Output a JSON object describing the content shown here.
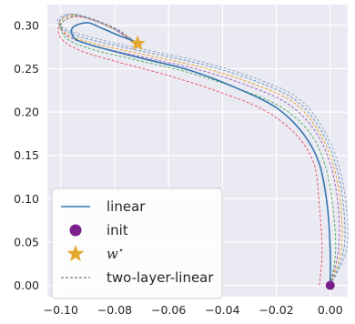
{
  "chart_data": {
    "type": "line",
    "title": "",
    "xlabel": "",
    "ylabel": "",
    "xlim": [
      -0.105,
      0.0065
    ],
    "ylim": [
      -0.013,
      0.324
    ],
    "x_ticks": [
      -0.1,
      -0.08,
      -0.06,
      -0.04,
      -0.02,
      0.0
    ],
    "x_tick_labels": [
      "−0.10",
      "−0.08",
      "−0.06",
      "−0.04",
      "−0.02",
      "0.00"
    ],
    "y_ticks": [
      0.0,
      0.05,
      0.1,
      0.15,
      0.2,
      0.25,
      0.3
    ],
    "y_tick_labels": [
      "0.00",
      "0.05",
      "0.10",
      "0.15",
      "0.20",
      "0.25",
      "0.30"
    ],
    "grid": true,
    "background_color": "#eaeaf2",
    "legend_position": "lower-left",
    "legend": [
      {
        "label": "linear",
        "marker": "line",
        "color": "#3474ae"
      },
      {
        "label": "init",
        "marker": "circle",
        "color": "#7b1f8d"
      },
      {
        "label": "w",
        "superscript": "⋆",
        "marker": "star",
        "color": "#e4a930"
      },
      {
        "label": "two-layer-linear",
        "marker": "dashed-line",
        "color": "#555555"
      }
    ],
    "series": [
      {
        "name": "linear",
        "style": "solid",
        "color": "#3474ae",
        "x": [
          0.0,
          0.0,
          -0.001,
          -0.004,
          -0.01,
          -0.02,
          -0.035,
          -0.052,
          -0.07,
          -0.085,
          -0.094,
          -0.096,
          -0.095,
          -0.09,
          -0.085,
          -0.079,
          -0.074,
          -0.0715
        ],
        "y": [
          0.0,
          0.04,
          0.09,
          0.14,
          0.175,
          0.205,
          0.228,
          0.248,
          0.262,
          0.274,
          0.283,
          0.292,
          0.299,
          0.303,
          0.297,
          0.289,
          0.283,
          0.279
        ]
      },
      {
        "name": "two-layer-linear",
        "style": "dashed",
        "color": "#e84a5f",
        "x": [
          -0.004,
          -0.003,
          -0.004,
          -0.006,
          -0.013,
          -0.025,
          -0.042,
          -0.06,
          -0.078,
          -0.092,
          -0.099,
          -0.101,
          -0.099,
          -0.094,
          -0.087,
          -0.08,
          -0.075,
          -0.0715
        ],
        "y": [
          0.0,
          0.04,
          0.09,
          0.14,
          0.175,
          0.203,
          0.224,
          0.242,
          0.257,
          0.27,
          0.282,
          0.295,
          0.305,
          0.31,
          0.305,
          0.295,
          0.285,
          0.279
        ]
      },
      {
        "name": "two-layer-linear",
        "style": "dashed",
        "color": "#4caa55",
        "x": [
          0.0,
          0.002,
          0.001,
          -0.002,
          -0.008,
          -0.019,
          -0.035,
          -0.053,
          -0.072,
          -0.088,
          -0.097,
          -0.1,
          -0.099,
          -0.094,
          -0.087,
          -0.08,
          -0.075,
          -0.0715
        ],
        "y": [
          0.0,
          0.04,
          0.09,
          0.14,
          0.178,
          0.207,
          0.228,
          0.246,
          0.26,
          0.272,
          0.283,
          0.295,
          0.305,
          0.311,
          0.306,
          0.296,
          0.286,
          0.279
        ]
      },
      {
        "name": "two-layer-linear",
        "style": "dashed",
        "color": "#9b59b6",
        "x": [
          0.0,
          0.003,
          0.003,
          0.0,
          -0.006,
          -0.016,
          -0.031,
          -0.049,
          -0.069,
          -0.086,
          -0.096,
          -0.1,
          -0.1,
          -0.095,
          -0.088,
          -0.08,
          -0.075,
          -0.0715
        ],
        "y": [
          0.0,
          0.04,
          0.09,
          0.14,
          0.18,
          0.21,
          0.231,
          0.249,
          0.263,
          0.275,
          0.285,
          0.296,
          0.306,
          0.312,
          0.307,
          0.297,
          0.287,
          0.279
        ]
      },
      {
        "name": "two-layer-linear",
        "style": "dashed",
        "color": "#f39c12",
        "x": [
          0.0,
          0.004,
          0.004,
          0.001,
          -0.005,
          -0.014,
          -0.029,
          -0.047,
          -0.067,
          -0.085,
          -0.096,
          -0.1,
          -0.1,
          -0.095,
          -0.088,
          -0.081,
          -0.075,
          -0.0715
        ],
        "y": [
          0.0,
          0.04,
          0.09,
          0.14,
          0.181,
          0.212,
          0.233,
          0.251,
          0.265,
          0.277,
          0.287,
          0.297,
          0.306,
          0.312,
          0.307,
          0.297,
          0.287,
          0.279
        ]
      },
      {
        "name": "two-layer-linear",
        "style": "dashed",
        "color": "#5d8fb8",
        "x": [
          0.0,
          0.005,
          0.005,
          0.002,
          -0.004,
          -0.013,
          -0.027,
          -0.045,
          -0.065,
          -0.083,
          -0.095,
          -0.1,
          -0.1,
          -0.096,
          -0.089,
          -0.081,
          -0.076,
          -0.0715
        ],
        "y": [
          0.0,
          0.04,
          0.09,
          0.14,
          0.182,
          0.214,
          0.235,
          0.253,
          0.267,
          0.279,
          0.289,
          0.298,
          0.307,
          0.313,
          0.308,
          0.298,
          0.288,
          0.279
        ]
      },
      {
        "name": "two-layer-linear",
        "style": "dashed",
        "color": "#8aa0c0",
        "x": [
          0.0,
          0.006,
          0.006,
          0.003,
          -0.003,
          -0.012,
          -0.026,
          -0.044,
          -0.064,
          -0.082,
          -0.094,
          -0.1,
          -0.101,
          -0.097,
          -0.09,
          -0.082,
          -0.076,
          -0.0715
        ],
        "y": [
          0.0,
          0.04,
          0.09,
          0.14,
          0.183,
          0.216,
          0.237,
          0.255,
          0.269,
          0.281,
          0.291,
          0.299,
          0.307,
          0.313,
          0.308,
          0.298,
          0.288,
          0.279
        ]
      }
    ],
    "markers": [
      {
        "name": "init",
        "shape": "circle",
        "x": 0.0,
        "y": 0.0,
        "color": "#7b1f8d"
      },
      {
        "name": "w",
        "shape": "star",
        "x": -0.0715,
        "y": 0.279,
        "color": "#e4a930"
      }
    ]
  }
}
